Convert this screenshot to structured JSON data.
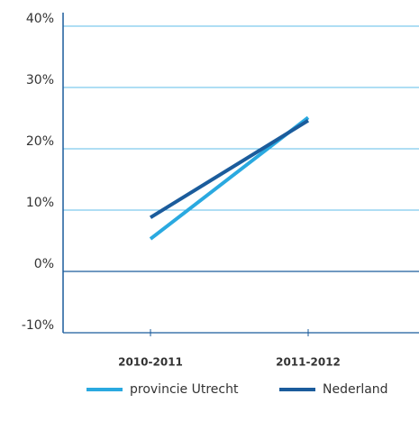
{
  "chart_data": {
    "type": "line",
    "categories": [
      "2010-2011",
      "2011-2012"
    ],
    "series": [
      {
        "name": "provincie Utrecht",
        "color": "#2aa9e0",
        "values": [
          5.3,
          25.1
        ]
      },
      {
        "name": "Nederland",
        "color": "#1b5c9c",
        "values": [
          8.8,
          24.6
        ]
      }
    ],
    "ylim": [
      -10,
      40
    ],
    "yticks": [
      {
        "value": -10,
        "label": "-10%"
      },
      {
        "value": 0,
        "label": "0%"
      },
      {
        "value": 10,
        "label": "10%"
      },
      {
        "value": 20,
        "label": "20%"
      },
      {
        "value": 30,
        "label": "30%"
      },
      {
        "value": 40,
        "label": "40%"
      }
    ],
    "grid": true
  }
}
